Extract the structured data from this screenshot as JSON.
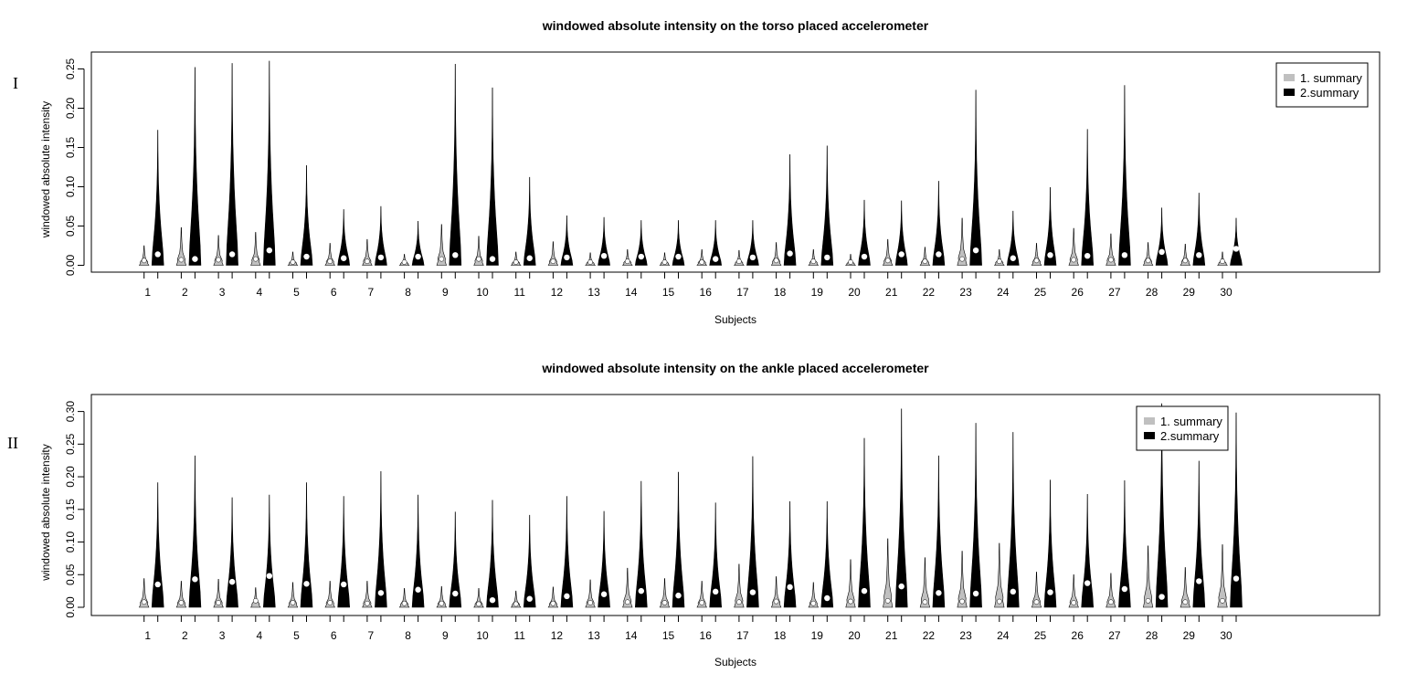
{
  "chart_data": [
    {
      "type": "violin",
      "panel_label": "I",
      "title": "windowed absolute intensity on the torso placed accelerometer",
      "xlabel": "Subjects",
      "ylabel": "windowed absolute intensity",
      "ylim": [
        0,
        0.27
      ],
      "yticks": [
        "0.00",
        "0.05",
        "0.10",
        "0.15",
        "0.20",
        "0.25"
      ],
      "categories": [
        "1",
        "2",
        "3",
        "4",
        "5",
        "6",
        "7",
        "8",
        "9",
        "10",
        "11",
        "12",
        "13",
        "14",
        "15",
        "16",
        "17",
        "18",
        "19",
        "20",
        "21",
        "22",
        "23",
        "24",
        "25",
        "26",
        "27",
        "28",
        "29",
        "30"
      ],
      "legend": {
        "position": "top-right",
        "entries": [
          {
            "label": "1. summary",
            "color": "#c0c0c0"
          },
          {
            "label": "2.summary",
            "color": "#000000"
          }
        ]
      },
      "series": [
        {
          "name": "1. summary",
          "color": "#c0c0c0",
          "max": [
            0.025,
            0.048,
            0.038,
            0.042,
            0.017,
            0.028,
            0.033,
            0.014,
            0.052,
            0.037,
            0.017,
            0.03,
            0.016,
            0.02,
            0.016,
            0.02,
            0.019,
            0.029,
            0.02,
            0.014,
            0.033,
            0.023,
            0.06,
            0.02,
            0.028,
            0.047,
            0.04,
            0.029,
            0.027,
            0.017
          ],
          "median": [
            0.006,
            0.007,
            0.007,
            0.008,
            0.004,
            0.005,
            0.005,
            0.004,
            0.008,
            0.008,
            0.004,
            0.005,
            0.004,
            0.005,
            0.004,
            0.004,
            0.005,
            0.006,
            0.005,
            0.004,
            0.006,
            0.005,
            0.008,
            0.005,
            0.006,
            0.007,
            0.007,
            0.006,
            0.006,
            0.005
          ]
        },
        {
          "name": "2.summary",
          "color": "#000000",
          "max": [
            0.172,
            0.252,
            0.257,
            0.26,
            0.127,
            0.071,
            0.075,
            0.056,
            0.256,
            0.226,
            0.112,
            0.063,
            0.061,
            0.057,
            0.057,
            0.057,
            0.057,
            0.141,
            0.152,
            0.083,
            0.082,
            0.107,
            0.223,
            0.069,
            0.099,
            0.173,
            0.229,
            0.073,
            0.092,
            0.06
          ],
          "median": [
            0.014,
            0.008,
            0.014,
            0.019,
            0.011,
            0.009,
            0.01,
            0.011,
            0.013,
            0.008,
            0.009,
            0.01,
            0.012,
            0.011,
            0.011,
            0.008,
            0.01,
            0.015,
            0.01,
            0.011,
            0.014,
            0.014,
            0.019,
            0.009,
            0.013,
            0.012,
            0.013,
            0.017,
            0.013,
            0.021
          ]
        }
      ]
    },
    {
      "type": "violin",
      "panel_label": "II",
      "title": "windowed absolute intensity on the ankle placed accelerometer",
      "xlabel": "Subjects",
      "ylabel": "windowed absolute intensity",
      "ylim": [
        0,
        0.32
      ],
      "yticks": [
        "0.00",
        "0.05",
        "0.10",
        "0.15",
        "0.20",
        "0.25",
        "0.30"
      ],
      "categories": [
        "1",
        "2",
        "3",
        "4",
        "5",
        "6",
        "7",
        "8",
        "9",
        "10",
        "11",
        "12",
        "13",
        "14",
        "15",
        "16",
        "17",
        "18",
        "19",
        "20",
        "21",
        "22",
        "23",
        "24",
        "25",
        "26",
        "27",
        "28",
        "29",
        "30"
      ],
      "legend": {
        "position": "top-right",
        "entries": [
          {
            "label": "1. summary",
            "color": "#c0c0c0"
          },
          {
            "label": "2.summary",
            "color": "#000000"
          }
        ]
      },
      "series": [
        {
          "name": "1. summary",
          "color": "#c0c0c0",
          "max": [
            0.044,
            0.04,
            0.043,
            0.03,
            0.038,
            0.04,
            0.04,
            0.029,
            0.032,
            0.029,
            0.025,
            0.031,
            0.042,
            0.06,
            0.044,
            0.04,
            0.066,
            0.047,
            0.038,
            0.073,
            0.105,
            0.076,
            0.086,
            0.098,
            0.054,
            0.05,
            0.052,
            0.094,
            0.061,
            0.096
          ],
          "median": [
            0.008,
            0.007,
            0.007,
            0.01,
            0.007,
            0.007,
            0.006,
            0.006,
            0.006,
            0.005,
            0.005,
            0.006,
            0.007,
            0.008,
            0.007,
            0.007,
            0.008,
            0.009,
            0.006,
            0.009,
            0.01,
            0.008,
            0.009,
            0.009,
            0.008,
            0.007,
            0.008,
            0.01,
            0.008,
            0.01
          ]
        },
        {
          "name": "2.summary",
          "color": "#000000",
          "max": [
            0.191,
            0.232,
            0.168,
            0.172,
            0.191,
            0.17,
            0.208,
            0.172,
            0.146,
            0.164,
            0.141,
            0.17,
            0.147,
            0.193,
            0.207,
            0.16,
            0.231,
            0.162,
            0.162,
            0.259,
            0.304,
            0.232,
            0.282,
            0.268,
            0.195,
            0.173,
            0.194,
            0.312,
            0.224,
            0.298
          ],
          "median": [
            0.035,
            0.043,
            0.039,
            0.048,
            0.036,
            0.035,
            0.022,
            0.027,
            0.021,
            0.011,
            0.013,
            0.017,
            0.02,
            0.025,
            0.018,
            0.024,
            0.023,
            0.031,
            0.014,
            0.025,
            0.032,
            0.022,
            0.021,
            0.024,
            0.023,
            0.037,
            0.028,
            0.016,
            0.04,
            0.044
          ]
        }
      ]
    }
  ]
}
